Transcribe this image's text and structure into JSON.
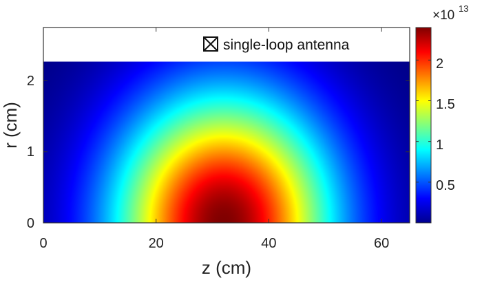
{
  "chart_data": {
    "type": "heatmap",
    "title": "",
    "xlabel": "z (cm)",
    "ylabel": "r (cm)",
    "xlim": [
      0,
      65
    ],
    "ylim": [
      0,
      2.75
    ],
    "x_ticks": [
      "0",
      "20",
      "40",
      "60"
    ],
    "y_ticks": [
      "0",
      "1",
      "2"
    ],
    "data_region": {
      "r_max": 2.27
    },
    "field": {
      "model": "peak at z = 32 cm, r = 0; decays with distance from the peak",
      "peak_value": 24000000000000.0,
      "peak_z": 32,
      "peak_r": 0
    },
    "colormap": "jet",
    "colorbar": {
      "min": 0,
      "max": 2.4,
      "ticks": [
        "0.5",
        "1",
        "1.5",
        "2"
      ],
      "multiplier_base": "×10",
      "multiplier_exp": "13"
    },
    "legend": {
      "label": "single-loop antenna",
      "position": "top-right",
      "marker": "boxed-x"
    }
  }
}
